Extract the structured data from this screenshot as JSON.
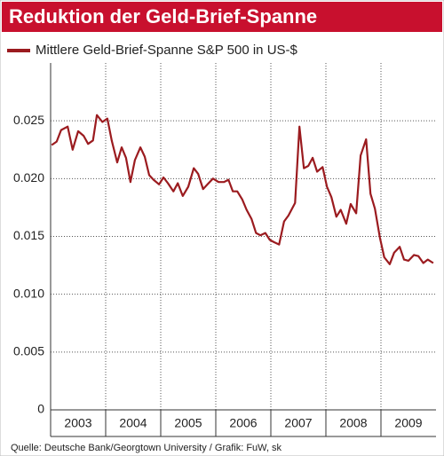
{
  "chart_data": {
    "type": "line",
    "title": "Reduktion der Geld-Brief-Spanne",
    "source": "Quelle: Deutsche Bank/Georgtown University / Grafik: FuW, sk",
    "x": [
      2003.02,
      2003.11,
      2003.19,
      2003.31,
      2003.4,
      2003.5,
      2003.6,
      2003.68,
      2003.77,
      2003.84,
      2003.94,
      2004.03,
      2004.11,
      2004.21,
      2004.29,
      2004.37,
      2004.45,
      2004.53,
      2004.63,
      2004.71,
      2004.79,
      2004.87,
      2004.97,
      2005.05,
      2005.13,
      2005.23,
      2005.31,
      2005.4,
      2005.5,
      2005.6,
      2005.68,
      2005.77,
      2005.85,
      2005.95,
      2006.05,
      2006.15,
      2006.23,
      2006.31,
      2006.39,
      2006.48,
      2006.56,
      2006.65,
      2006.73,
      2006.81,
      2006.9,
      2006.98,
      2007.06,
      2007.15,
      2007.24,
      2007.32,
      2007.44,
      2007.52,
      2007.6,
      2007.68,
      2007.76,
      2007.84,
      2007.94,
      2008.02,
      2008.1,
      2008.19,
      2008.27,
      2008.37,
      2008.45,
      2008.55,
      2008.63,
      2008.73,
      2008.81,
      2008.89,
      2008.98,
      2009.06,
      2009.16,
      2009.24,
      2009.34,
      2009.42,
      2009.5,
      2009.6,
      2009.68,
      2009.77,
      2009.85,
      2009.95
    ],
    "series": [
      {
        "name": "Mittlere Geld-Brief-Spanne S&P 500 in US-$",
        "color": "#9b1b1f",
        "values": [
          0.0229,
          0.0232,
          0.0242,
          0.0245,
          0.0225,
          0.0241,
          0.0237,
          0.023,
          0.0233,
          0.0255,
          0.0249,
          0.0252,
          0.0233,
          0.0214,
          0.0227,
          0.0218,
          0.0197,
          0.0216,
          0.0227,
          0.0219,
          0.0203,
          0.0199,
          0.0195,
          0.0201,
          0.0196,
          0.0189,
          0.0196,
          0.0185,
          0.0193,
          0.0209,
          0.0204,
          0.0191,
          0.0195,
          0.02,
          0.0197,
          0.0197,
          0.0199,
          0.0189,
          0.0189,
          0.0182,
          0.0173,
          0.0165,
          0.0153,
          0.0151,
          0.0153,
          0.0147,
          0.0145,
          0.0143,
          0.0163,
          0.0168,
          0.0179,
          0.0245,
          0.0209,
          0.0211,
          0.0218,
          0.0206,
          0.021,
          0.0193,
          0.0184,
          0.0167,
          0.0173,
          0.0161,
          0.0178,
          0.017,
          0.022,
          0.0234,
          0.0187,
          0.0174,
          0.0149,
          0.0132,
          0.0126,
          0.0136,
          0.0141,
          0.013,
          0.0129,
          0.0134,
          0.0133,
          0.0127,
          0.013,
          0.0127
        ]
      }
    ],
    "xlim": [
      2003,
      2010
    ],
    "xticks": [
      {
        "value": 2003.5,
        "label": "2003"
      },
      {
        "value": 2004.5,
        "label": "2004"
      },
      {
        "value": 2005.5,
        "label": "2005"
      },
      {
        "value": 2006.5,
        "label": "2006"
      },
      {
        "value": 2007.5,
        "label": "2007"
      },
      {
        "value": 2008.5,
        "label": "2008"
      },
      {
        "value": 2009.5,
        "label": "2009"
      }
    ],
    "x_boundaries": [
      2004,
      2005,
      2006,
      2007,
      2008,
      2009
    ],
    "ylim": [
      0,
      0.03
    ],
    "yticks": [
      0,
      0.005,
      {
        "value": 0.01,
        "label": "0.010"
      },
      0.015,
      {
        "value": 0.02,
        "label": "0.020"
      },
      0.025
    ],
    "grid": true
  }
}
